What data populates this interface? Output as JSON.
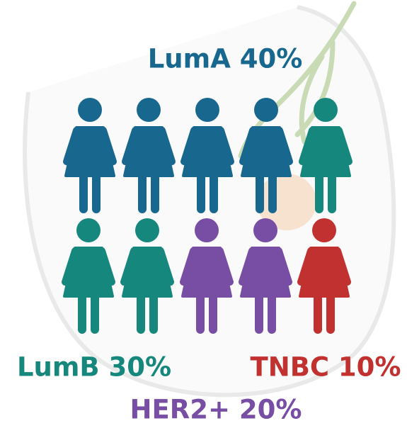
{
  "labels": [
    {
      "text": "LumA 40%",
      "color": "#17678f"
    },
    {
      "text": "LumB 30%",
      "color": "#16877c"
    },
    {
      "text": "HER2+ 20%",
      "color": "#774ea3"
    },
    {
      "text": "TNBC 10%",
      "color": "#c1312f"
    }
  ]
}
